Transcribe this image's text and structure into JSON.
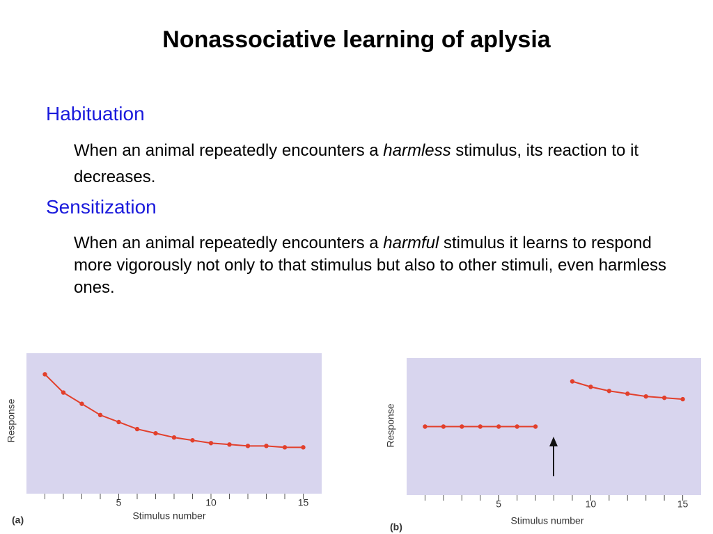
{
  "title": "Nonassociative learning of aplysia",
  "sections": [
    {
      "heading": "Habituation",
      "text": [
        "When an animal repeatedly encounters a ",
        "harmless",
        " stimulus, its reaction to it decreases."
      ]
    },
    {
      "heading": "Sensitization",
      "text": [
        "When an animal repeatedly encounters a ",
        "harmful",
        " stimulus it learns to respond more vigorously not only to that stimulus but also to other stimuli, even harmless ones."
      ]
    }
  ],
  "chart_data": [
    {
      "type": "line",
      "panel_label": "(a)",
      "x_label": "Stimulus number",
      "y_label": "Response",
      "x": [
        1,
        2,
        3,
        4,
        5,
        6,
        7,
        8,
        9,
        10,
        11,
        12,
        13,
        14,
        15
      ],
      "series": [
        {
          "color": "#e2402c",
          "values": [
            8.5,
            7.2,
            6.4,
            5.6,
            5.1,
            4.6,
            4.3,
            4.0,
            3.8,
            3.6,
            3.5,
            3.4,
            3.4,
            3.3,
            3.3
          ]
        }
      ],
      "xlim": [
        0,
        16
      ],
      "ylim": [
        0,
        10
      ],
      "xticks": [
        5,
        10,
        15
      ],
      "xminor_ticks": [
        1,
        2,
        3,
        4,
        5,
        6,
        7,
        8,
        9,
        10,
        11,
        12,
        13,
        14,
        15
      ],
      "background": "#d8d5ee"
    },
    {
      "type": "line",
      "panel_label": "(b)",
      "x_label": "Stimulus number",
      "y_label": "Response",
      "x": [
        1,
        2,
        3,
        4,
        5,
        6,
        7,
        8,
        9,
        10,
        11,
        12,
        13,
        14,
        15
      ],
      "series": [
        {
          "color": "#e2402c",
          "values": [
            5.0,
            5.0,
            5.0,
            5.0,
            5.0,
            5.0,
            5.0,
            null,
            8.3,
            7.9,
            7.6,
            7.4,
            7.2,
            7.1,
            7.0
          ]
        }
      ],
      "xlim": [
        0,
        16
      ],
      "ylim": [
        0,
        10
      ],
      "xticks": [
        5,
        10,
        15
      ],
      "xminor_ticks": [
        1,
        2,
        3,
        4,
        5,
        6,
        7,
        8,
        9,
        10,
        11,
        12,
        13,
        14,
        15
      ],
      "background": "#d8d5ee"
    }
  ]
}
